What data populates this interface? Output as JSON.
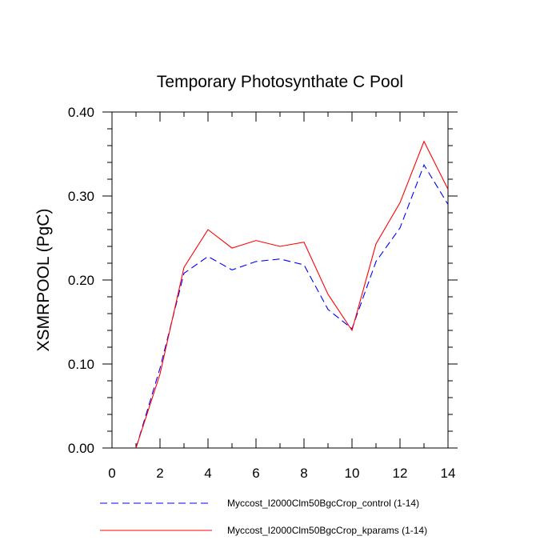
{
  "chart_data": {
    "type": "line",
    "title": "Temporary Photosynthate C Pool",
    "xlabel": "",
    "ylabel": "XSMRPOOL  (PgC)",
    "xlim": [
      0,
      14
    ],
    "ylim": [
      0,
      0.4
    ],
    "xticks": [
      "0",
      "2",
      "4",
      "6",
      "8",
      "10",
      "12",
      "14"
    ],
    "yticks": [
      "0.00",
      "0.10",
      "0.20",
      "0.30",
      "0.40"
    ],
    "grid": false,
    "legend_position": "bottom",
    "x": [
      1,
      2,
      3,
      4,
      5,
      6,
      7,
      8,
      9,
      10,
      11,
      12,
      13,
      14
    ],
    "series": [
      {
        "name": "Myccost_I2000Clm50BgcCrop_control (1-14)",
        "color": "#0000ff",
        "style": "dashed",
        "values": [
          0.0,
          0.095,
          0.208,
          0.228,
          0.212,
          0.222,
          0.225,
          0.218,
          0.165,
          0.142,
          0.222,
          0.262,
          0.337,
          0.29
        ]
      },
      {
        "name": "Myccost_I2000Clm50BgcCrop_kparams (1-14)",
        "color": "#ff0000",
        "style": "solid",
        "values": [
          0.0,
          0.088,
          0.215,
          0.26,
          0.238,
          0.247,
          0.24,
          0.245,
          0.183,
          0.14,
          0.243,
          0.292,
          0.365,
          0.308
        ]
      }
    ]
  }
}
